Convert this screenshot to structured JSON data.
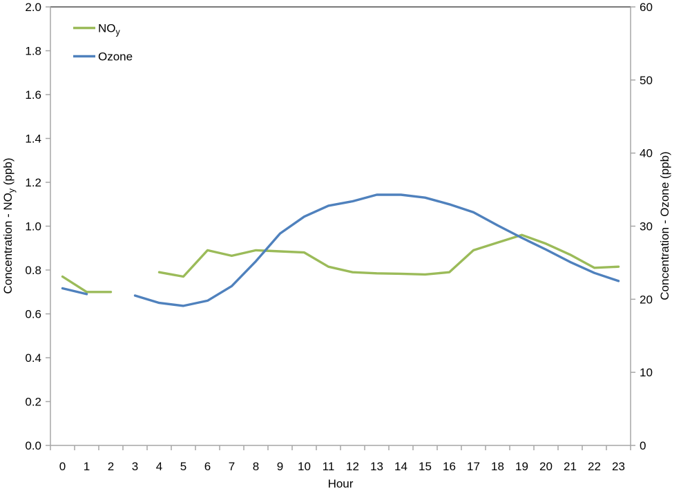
{
  "chart_data": {
    "type": "line",
    "title": "",
    "grid": false,
    "x_axis": {
      "label": "Hour",
      "categories": [
        "0",
        "1",
        "2",
        "3",
        "4",
        "5",
        "6",
        "7",
        "8",
        "9",
        "10",
        "11",
        "12",
        "13",
        "14",
        "15",
        "16",
        "17",
        "18",
        "19",
        "20",
        "21",
        "22",
        "23"
      ]
    },
    "left_axis": {
      "title_main": "Concentration - NO",
      "title_sub": "y",
      "title_rest": " (ppb)",
      "range": [
        0.0,
        2.0
      ],
      "tick_step": 0.2,
      "tick_labels": [
        "0.0",
        "0.2",
        "0.4",
        "0.6",
        "0.8",
        "1.0",
        "1.2",
        "1.4",
        "1.6",
        "1.8",
        "2.0"
      ]
    },
    "right_axis": {
      "title": "Concentration - Ozone (ppb)",
      "range": [
        0,
        60
      ],
      "tick_step": 10,
      "tick_labels": [
        "0",
        "10",
        "20",
        "30",
        "40",
        "50",
        "60"
      ]
    },
    "legend": {
      "position": "top-left-inside",
      "noy_main": "NO",
      "noy_sub": "y",
      "ozone_label": "Ozone"
    },
    "series": [
      {
        "name": "NOy",
        "axis": "left",
        "color": "#9BBB59",
        "values": [
          0.77,
          0.7,
          0.7,
          null,
          0.79,
          0.77,
          0.89,
          0.865,
          0.89,
          0.885,
          0.88,
          0.815,
          0.79,
          0.785,
          0.783,
          0.78,
          0.79,
          0.89,
          0.925,
          0.96,
          0.92,
          0.87,
          0.81,
          0.815
        ]
      },
      {
        "name": "Ozone",
        "axis": "right",
        "color": "#4F81BD",
        "values": [
          21.5,
          20.7,
          null,
          20.5,
          19.5,
          19.1,
          19.8,
          21.8,
          25.2,
          29.0,
          31.3,
          32.8,
          33.4,
          34.3,
          34.3,
          33.9,
          33.0,
          31.9,
          30.1,
          28.4,
          26.8,
          25.1,
          23.6,
          22.5
        ]
      }
    ],
    "style": {
      "border_top": "#4d4d4d",
      "axis_line": "#a6a6a6",
      "tick_color": "#a6a6a6",
      "text_color": "#000000",
      "background": "#ffffff"
    }
  }
}
